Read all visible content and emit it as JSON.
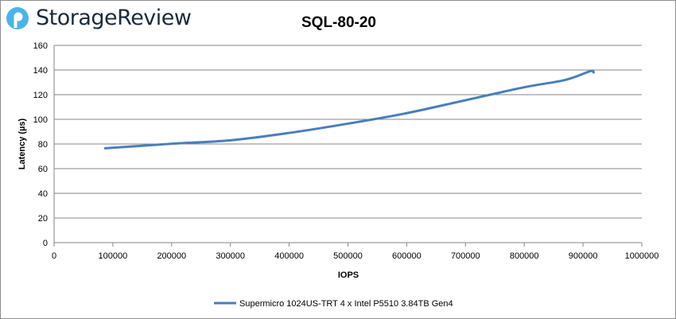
{
  "brand": {
    "name": "StorageReview",
    "accent": "#4db3e6"
  },
  "chart_data": {
    "type": "line",
    "title": "SQL-80-20",
    "xlabel": "IOPS",
    "ylabel": "Latency (µs)",
    "xlim": [
      0,
      1000000
    ],
    "ylim": [
      0,
      160
    ],
    "xticks": [
      0,
      100000,
      200000,
      300000,
      400000,
      500000,
      600000,
      700000,
      800000,
      900000,
      1000000
    ],
    "yticks": [
      0,
      20,
      40,
      60,
      80,
      100,
      120,
      140,
      160
    ],
    "grid": "horizontal",
    "legend_position": "bottom",
    "series": [
      {
        "name": "Supermicro 1024US-TRT 4 x Intel P5510 3.84TB Gen4",
        "color": "#4a7ebb",
        "x": [
          87000,
          200000,
          300000,
          400000,
          500000,
          600000,
          700000,
          800000,
          870000,
          912000,
          918000
        ],
        "y": [
          76.5,
          80.2,
          83,
          89,
          96.5,
          105,
          115.5,
          126,
          132,
          139,
          138
        ]
      }
    ]
  }
}
